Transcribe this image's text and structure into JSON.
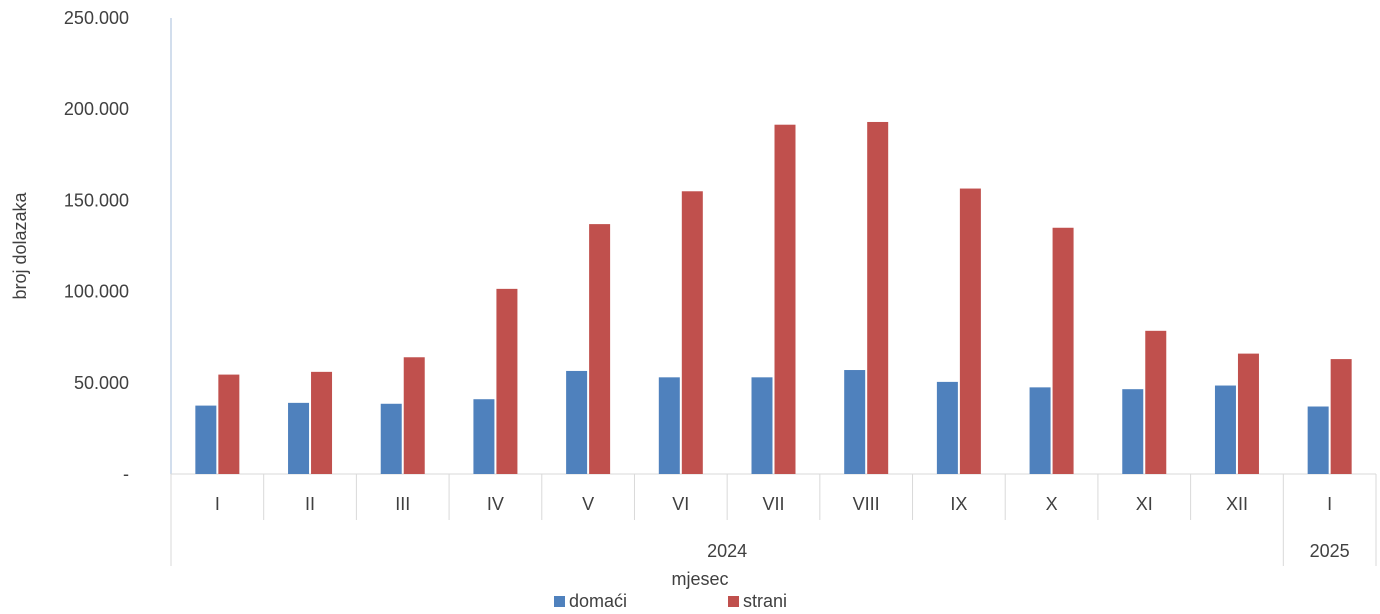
{
  "chart_data": {
    "type": "bar",
    "xlabel": "mjesec",
    "ylabel": "broj dolazaka",
    "ylim": [
      0,
      250000
    ],
    "yticks": [
      "-",
      "50.000",
      "100.000",
      "150.000",
      "200.000",
      "250.000"
    ],
    "categories": [
      "I",
      "II",
      "III",
      "IV",
      "V",
      "VI",
      "VII",
      "VIII",
      "IX",
      "X",
      "XI",
      "XII",
      "I"
    ],
    "groups": [
      {
        "label": "2024",
        "count": 12
      },
      {
        "label": "2025",
        "count": 1
      }
    ],
    "series": [
      {
        "name": "domaći",
        "color": "#4f81bd",
        "values": [
          37500,
          39000,
          38500,
          41000,
          56500,
          53000,
          53000,
          57000,
          50500,
          47500,
          46500,
          48500,
          37000
        ]
      },
      {
        "name": "strani",
        "color": "#c0504d",
        "values": [
          54500,
          56000,
          64000,
          101500,
          137000,
          155000,
          191500,
          193000,
          156500,
          135000,
          78500,
          66000,
          63000
        ]
      }
    ],
    "legend_position": "bottom",
    "grid": false
  }
}
